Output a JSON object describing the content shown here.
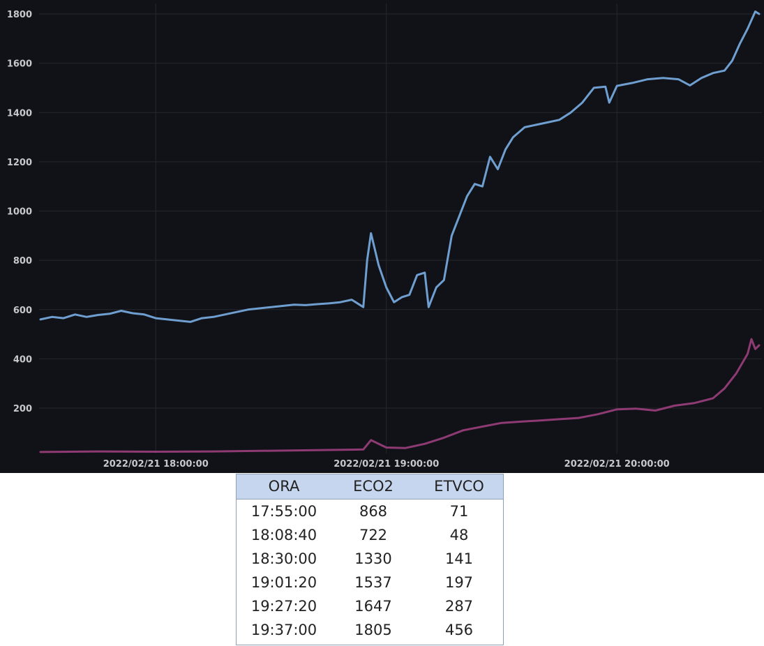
{
  "chart_data": {
    "type": "line",
    "title": "",
    "xlabel": "",
    "ylabel": "",
    "ylim": [
      0,
      1800
    ],
    "y_ticks": [
      "200",
      "400",
      "600",
      "800",
      "1000",
      "1200",
      "1400",
      "1600",
      "1800"
    ],
    "x_ticks": [
      "2022/02/21 18:00:00",
      "2022/02/21 19:00:00",
      "2022/02/21 20:00:00"
    ],
    "x_range": [
      "17:30:00",
      "20:37:00"
    ],
    "grid": true,
    "legend": "none",
    "series": [
      {
        "color": "#6f9fd0",
        "points": [
          [
            "17:30:00",
            560
          ],
          [
            "17:33:00",
            570
          ],
          [
            "17:36:00",
            565
          ],
          [
            "17:39:00",
            580
          ],
          [
            "17:42:00",
            570
          ],
          [
            "17:45:00",
            578
          ],
          [
            "17:48:00",
            583
          ],
          [
            "17:51:00",
            595
          ],
          [
            "17:54:00",
            585
          ],
          [
            "17:57:00",
            580
          ],
          [
            "18:00:00",
            565
          ],
          [
            "18:03:00",
            560
          ],
          [
            "18:06:00",
            555
          ],
          [
            "18:09:00",
            550
          ],
          [
            "18:12:00",
            565
          ],
          [
            "18:15:00",
            570
          ],
          [
            "18:18:00",
            580
          ],
          [
            "18:21:00",
            590
          ],
          [
            "18:24:00",
            600
          ],
          [
            "18:27:00",
            605
          ],
          [
            "18:30:00",
            610
          ],
          [
            "18:33:00",
            615
          ],
          [
            "18:36:00",
            620
          ],
          [
            "18:39:00",
            618
          ],
          [
            "18:42:00",
            622
          ],
          [
            "18:45:00",
            625
          ],
          [
            "18:48:00",
            630
          ],
          [
            "18:51:00",
            640
          ],
          [
            "18:54:00",
            610
          ],
          [
            "18:55:00",
            800
          ],
          [
            "18:56:00",
            910
          ],
          [
            "18:58:00",
            780
          ],
          [
            "19:00:00",
            690
          ],
          [
            "19:02:00",
            630
          ],
          [
            "19:04:00",
            650
          ],
          [
            "19:06:00",
            660
          ],
          [
            "19:08:00",
            740
          ],
          [
            "19:10:00",
            750
          ],
          [
            "19:11:00",
            610
          ],
          [
            "19:13:00",
            690
          ],
          [
            "19:15:00",
            720
          ],
          [
            "19:17:00",
            900
          ],
          [
            "19:19:00",
            980
          ],
          [
            "19:21:00",
            1060
          ],
          [
            "19:23:00",
            1110
          ],
          [
            "19:25:00",
            1100
          ],
          [
            "19:27:00",
            1220
          ],
          [
            "19:29:00",
            1170
          ],
          [
            "19:31:00",
            1250
          ],
          [
            "19:33:00",
            1300
          ],
          [
            "19:36:00",
            1340
          ],
          [
            "19:39:00",
            1350
          ],
          [
            "19:42:00",
            1360
          ],
          [
            "19:45:00",
            1370
          ],
          [
            "19:48:00",
            1400
          ],
          [
            "19:51:00",
            1440
          ],
          [
            "19:54:00",
            1500
          ],
          [
            "19:57:00",
            1505
          ],
          [
            "19:58:00",
            1440
          ],
          [
            "20:00:00",
            1508
          ],
          [
            "20:04:00",
            1520
          ],
          [
            "20:08:00",
            1535
          ],
          [
            "20:12:00",
            1540
          ],
          [
            "20:16:00",
            1535
          ],
          [
            "20:19:00",
            1510
          ],
          [
            "20:22:00",
            1540
          ],
          [
            "20:25:00",
            1560
          ],
          [
            "20:28:00",
            1570
          ],
          [
            "20:30:00",
            1610
          ],
          [
            "20:32:00",
            1680
          ],
          [
            "20:34:00",
            1740
          ],
          [
            "20:36:00",
            1810
          ],
          [
            "20:37:00",
            1800
          ]
        ]
      },
      {
        "color": "#8e3a73",
        "points": [
          [
            "17:30:00",
            22
          ],
          [
            "17:45:00",
            24
          ],
          [
            "18:00:00",
            23
          ],
          [
            "18:15:00",
            24
          ],
          [
            "18:30:00",
            27
          ],
          [
            "18:45:00",
            30
          ],
          [
            "18:54:00",
            32
          ],
          [
            "18:56:00",
            70
          ],
          [
            "19:00:00",
            40
          ],
          [
            "19:05:00",
            38
          ],
          [
            "19:10:00",
            55
          ],
          [
            "19:15:00",
            80
          ],
          [
            "19:20:00",
            110
          ],
          [
            "19:25:00",
            125
          ],
          [
            "19:30:00",
            140
          ],
          [
            "19:35:00",
            145
          ],
          [
            "19:40:00",
            150
          ],
          [
            "19:45:00",
            155
          ],
          [
            "19:50:00",
            160
          ],
          [
            "19:55:00",
            175
          ],
          [
            "20:00:00",
            195
          ],
          [
            "20:05:00",
            198
          ],
          [
            "20:10:00",
            190
          ],
          [
            "20:15:00",
            210
          ],
          [
            "20:20:00",
            220
          ],
          [
            "20:25:00",
            240
          ],
          [
            "20:28:00",
            280
          ],
          [
            "20:31:00",
            340
          ],
          [
            "20:34:00",
            420
          ],
          [
            "20:35:00",
            480
          ],
          [
            "20:36:00",
            440
          ],
          [
            "20:37:00",
            455
          ]
        ]
      }
    ]
  },
  "table": {
    "headers": [
      "ORA",
      "ECO2",
      "ETVCO"
    ],
    "rows": [
      [
        "17:55:00",
        "868",
        "71"
      ],
      [
        "18:08:40",
        "722",
        "48"
      ],
      [
        "18:30:00",
        "1330",
        "141"
      ],
      [
        "19:01:20",
        "1537",
        "197"
      ],
      [
        "19:27:20",
        "1647",
        "287"
      ],
      [
        "19:37:00",
        "1805",
        "456"
      ]
    ]
  }
}
